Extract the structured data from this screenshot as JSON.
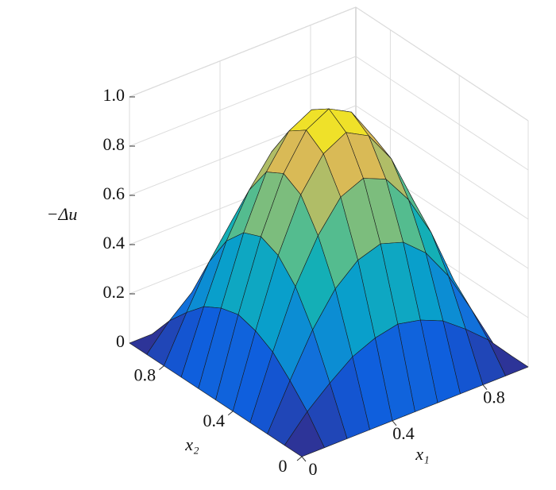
{
  "chart_data": {
    "type": "surface",
    "colormap": "parula",
    "grid": true,
    "zlabel": "−Δu",
    "xlabel": "x₁",
    "ylabel": "x₂",
    "x": [
      0,
      0.1,
      0.2,
      0.3,
      0.4,
      0.5,
      0.6,
      0.7,
      0.8,
      0.9,
      1
    ],
    "y": [
      0,
      0.1,
      0.2,
      0.3,
      0.4,
      0.5,
      0.6,
      0.7,
      0.8,
      0.9,
      1
    ],
    "z": [
      [
        0,
        0,
        0,
        0,
        0,
        0,
        0,
        0,
        0,
        0,
        0
      ],
      [
        0,
        0.1,
        0.18,
        0.25,
        0.29,
        0.31,
        0.29,
        0.25,
        0.18,
        0.1,
        0
      ],
      [
        0,
        0.18,
        0.35,
        0.48,
        0.56,
        0.59,
        0.56,
        0.48,
        0.35,
        0.18,
        0
      ],
      [
        0,
        0.25,
        0.48,
        0.65,
        0.77,
        0.81,
        0.77,
        0.65,
        0.48,
        0.25,
        0
      ],
      [
        0,
        0.29,
        0.56,
        0.77,
        0.9,
        0.95,
        0.9,
        0.77,
        0.56,
        0.29,
        0
      ],
      [
        0,
        0.31,
        0.59,
        0.81,
        0.95,
        1,
        0.95,
        0.81,
        0.59,
        0.31,
        0
      ],
      [
        0,
        0.29,
        0.56,
        0.77,
        0.9,
        0.95,
        0.9,
        0.77,
        0.56,
        0.29,
        0
      ],
      [
        0,
        0.25,
        0.48,
        0.65,
        0.77,
        0.81,
        0.77,
        0.65,
        0.48,
        0.25,
        0
      ],
      [
        0,
        0.18,
        0.35,
        0.48,
        0.56,
        0.59,
        0.56,
        0.48,
        0.35,
        0.18,
        0
      ],
      [
        0,
        0.1,
        0.18,
        0.25,
        0.29,
        0.31,
        0.29,
        0.25,
        0.18,
        0.1,
        0
      ],
      [
        0,
        0,
        0,
        0,
        0,
        0,
        0,
        0,
        0,
        0,
        0
      ]
    ],
    "xlim": [
      0,
      1
    ],
    "ylim": [
      0,
      1
    ],
    "zlim": [
      0,
      1
    ],
    "xticks": [
      0,
      0.4,
      0.8
    ],
    "yticks": [
      0,
      0.4,
      0.8
    ],
    "zticks": [
      0,
      0.2,
      0.4,
      0.6,
      0.8,
      {
        "value": 1,
        "label": "1.0"
      }
    ]
  }
}
